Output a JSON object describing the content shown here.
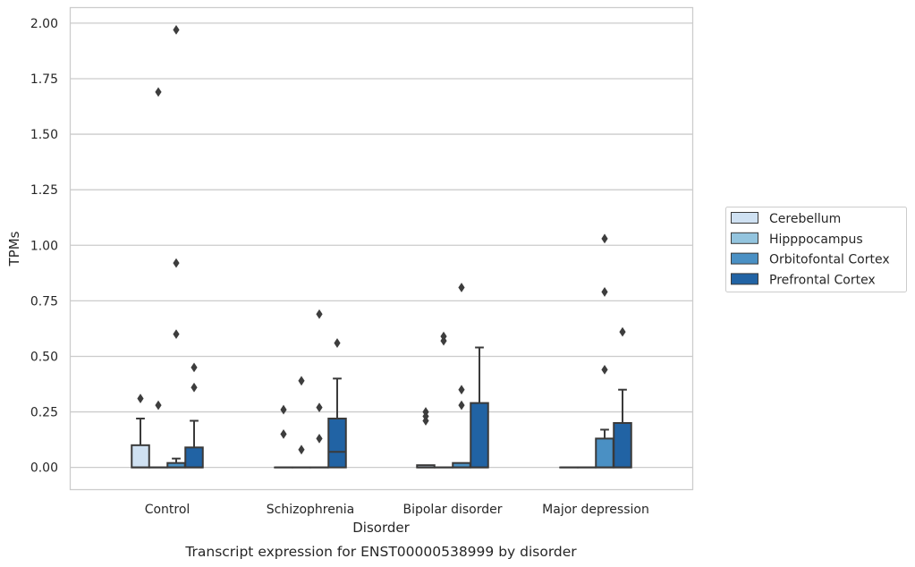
{
  "chart_data": {
    "type": "box",
    "caption": "Transcript expression for ENST00000538999 by disorder",
    "xlabel": "Disorder",
    "ylabel": "TPMs",
    "ylim": [
      -0.1,
      2.07
    ],
    "yticks": [
      0.0,
      0.25,
      0.5,
      0.75,
      1.0,
      1.25,
      1.5,
      1.75,
      2.0
    ],
    "ytick_labels": [
      "0.00",
      "0.25",
      "0.50",
      "0.75",
      "1.00",
      "1.25",
      "1.50",
      "1.75",
      "2.00"
    ],
    "categories": [
      "Control",
      "Schizophrenia",
      "Bipolar disorder",
      "Major depression"
    ],
    "grid": "horizontal",
    "legend_position": "right",
    "series": [
      {
        "name": "Cerebellum",
        "color": "#cfe1f2",
        "boxes": [
          {
            "q1": 0.0,
            "median": 0.0,
            "q3": 0.1,
            "whisker_low": 0.0,
            "whisker_high": 0.22,
            "outliers": [
              0.31
            ]
          },
          {
            "q1": 0.0,
            "median": 0.0,
            "q3": 0.0,
            "whisker_low": 0.0,
            "whisker_high": 0.0,
            "outliers": [
              0.26,
              0.15
            ]
          },
          {
            "q1": 0.0,
            "median": 0.0,
            "q3": 0.01,
            "whisker_low": 0.0,
            "whisker_high": 0.01,
            "outliers": [
              0.25,
              0.23,
              0.21
            ]
          },
          {
            "q1": 0.0,
            "median": 0.0,
            "q3": 0.0,
            "whisker_low": 0.0,
            "whisker_high": 0.0,
            "outliers": []
          }
        ]
      },
      {
        "name": "Hipppocampus",
        "color": "#93c4de",
        "boxes": [
          {
            "q1": 0.0,
            "median": 0.0,
            "q3": 0.0,
            "whisker_low": 0.0,
            "whisker_high": 0.0,
            "outliers": [
              1.69,
              0.28
            ]
          },
          {
            "q1": 0.0,
            "median": 0.0,
            "q3": 0.0,
            "whisker_low": 0.0,
            "whisker_high": 0.0,
            "outliers": [
              0.39,
              0.08
            ]
          },
          {
            "q1": 0.0,
            "median": 0.0,
            "q3": 0.0,
            "whisker_low": 0.0,
            "whisker_high": 0.0,
            "outliers": [
              0.59,
              0.57
            ]
          },
          {
            "q1": 0.0,
            "median": 0.0,
            "q3": 0.0,
            "whisker_low": 0.0,
            "whisker_high": 0.0,
            "outliers": []
          }
        ]
      },
      {
        "name": "Orbitofontal Cortex",
        "color": "#4a90c4",
        "boxes": [
          {
            "q1": 0.0,
            "median": 0.0,
            "q3": 0.02,
            "whisker_low": 0.0,
            "whisker_high": 0.04,
            "outliers": [
              1.97,
              0.92,
              0.6
            ]
          },
          {
            "q1": 0.0,
            "median": 0.0,
            "q3": 0.0,
            "whisker_low": 0.0,
            "whisker_high": 0.0,
            "outliers": [
              0.69,
              0.27,
              0.13
            ]
          },
          {
            "q1": 0.0,
            "median": 0.0,
            "q3": 0.02,
            "whisker_low": 0.0,
            "whisker_high": 0.02,
            "outliers": [
              0.81,
              0.35,
              0.28
            ]
          },
          {
            "q1": 0.0,
            "median": 0.0,
            "q3": 0.13,
            "whisker_low": 0.0,
            "whisker_high": 0.17,
            "outliers": [
              1.03,
              0.79,
              0.44
            ]
          }
        ]
      },
      {
        "name": "Prefrontal Cortex",
        "color": "#2163a4",
        "boxes": [
          {
            "q1": 0.0,
            "median": 0.0,
            "q3": 0.09,
            "whisker_low": 0.0,
            "whisker_high": 0.21,
            "outliers": [
              0.45,
              0.36
            ]
          },
          {
            "q1": 0.0,
            "median": 0.07,
            "q3": 0.22,
            "whisker_low": 0.0,
            "whisker_high": 0.4,
            "outliers": [
              0.56
            ]
          },
          {
            "q1": 0.0,
            "median": 0.0,
            "q3": 0.29,
            "whisker_low": 0.0,
            "whisker_high": 0.54,
            "outliers": []
          },
          {
            "q1": 0.0,
            "median": 0.0,
            "q3": 0.2,
            "whisker_low": 0.0,
            "whisker_high": 0.35,
            "outliers": [
              0.61
            ]
          }
        ]
      }
    ]
  }
}
